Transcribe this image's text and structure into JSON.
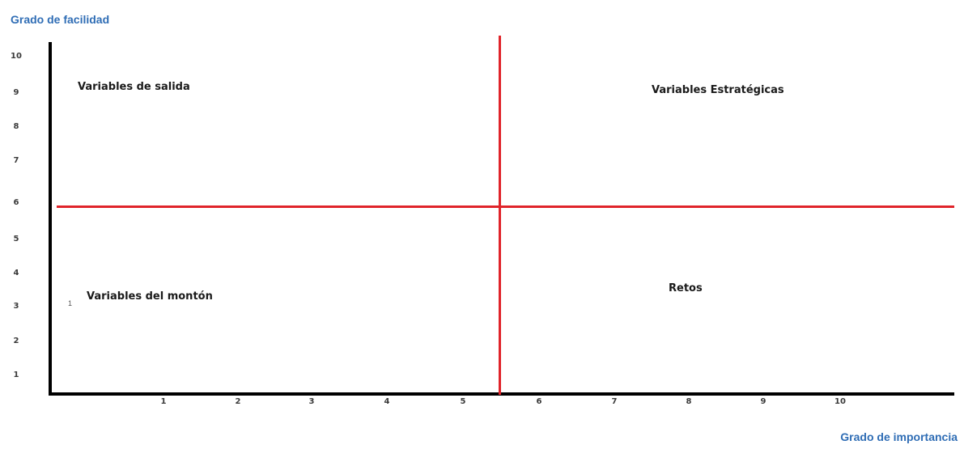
{
  "axes": {
    "y_title": "Grado de facilidad",
    "x_title": "Grado de importancia",
    "y_ticks": [
      "10",
      "9",
      "8",
      "7",
      "6",
      "5",
      "4",
      "3",
      "2",
      "1"
    ],
    "x_ticks": [
      "1",
      "2",
      "3",
      "4",
      "5",
      "6",
      "7",
      "8",
      "9",
      "10"
    ]
  },
  "quadrants": {
    "top_left": "Variables de salida",
    "top_right": "Variables Estratégicas",
    "bottom_left": "Variables del montón",
    "bottom_right": "Retos"
  },
  "stray_mark": "1",
  "colors": {
    "axis_title": "#2f6db5",
    "divider": "#e0242a",
    "axis": "#000000"
  }
}
